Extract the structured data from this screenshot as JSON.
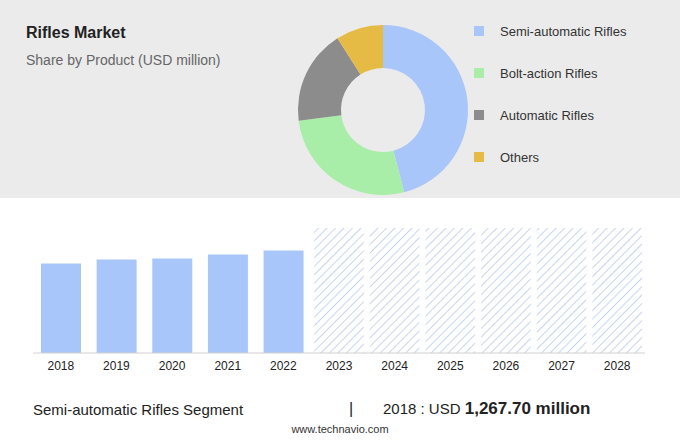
{
  "chart_data": [
    {
      "type": "pie",
      "title": "Rifles Market",
      "subtitle": "Share by Product (USD million)",
      "categories": [
        "Semi-automatic Rifles",
        "Bolt-action Rifles",
        "Automatic Rifles",
        "Others"
      ],
      "values": [
        46,
        27,
        18,
        9
      ],
      "colors": [
        "#a9c6fa",
        "#a8eea8",
        "#8c8c8c",
        "#e6bb45"
      ],
      "legend": "right"
    },
    {
      "type": "bar",
      "categories": [
        "2018",
        "2019",
        "2020",
        "2021",
        "2022",
        "2023",
        "2024",
        "2025",
        "2026",
        "2027",
        "2028"
      ],
      "values": [
        1267.7,
        1324,
        1339,
        1396,
        1453,
        null,
        null,
        null,
        null,
        null,
        null
      ],
      "color": "#a9c6fa",
      "ylim": [
        0,
        1770
      ],
      "tick_labels": "x",
      "annotations": [
        "Semi-automatic Rifles Segment",
        "|",
        "2018 : USD",
        "1,267.70 million",
        "www.technavio.com"
      ]
    }
  ]
}
